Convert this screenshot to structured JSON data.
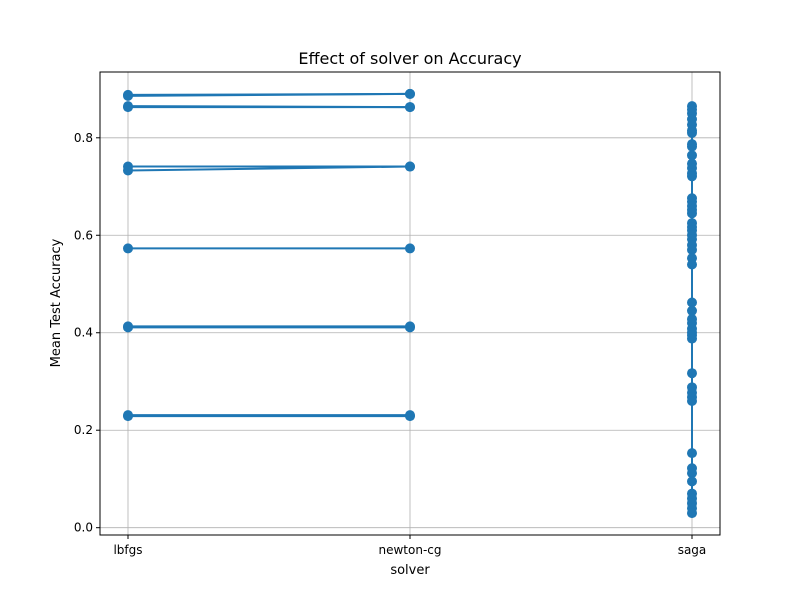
{
  "chart_data": {
    "type": "line",
    "title": "Effect of solver on Accuracy",
    "xlabel": "solver",
    "ylabel": "Mean Test Accuracy",
    "categories": [
      "lbfgs",
      "newton-cg",
      "saga"
    ],
    "ylim": [
      -0.015,
      0.935
    ],
    "yticks": [
      0.0,
      0.2,
      0.4,
      0.6,
      0.8
    ],
    "ytick_labels": [
      "0.0",
      "0.2",
      "0.4",
      "0.6",
      "0.8"
    ],
    "grid": true,
    "line_color": "#1f77b4",
    "lbfgs_newton_pairs": [
      [
        0.886,
        0.89
      ],
      [
        0.888,
        0.89
      ],
      [
        0.865,
        0.863
      ],
      [
        0.863,
        0.863
      ],
      [
        0.741,
        0.741
      ],
      [
        0.733,
        0.741
      ],
      [
        0.573,
        0.573
      ],
      [
        0.411,
        0.411
      ],
      [
        0.413,
        0.413
      ],
      [
        0.231,
        0.231
      ],
      [
        0.229,
        0.229
      ]
    ],
    "saga_values": [
      0.865,
      0.858,
      0.85,
      0.838,
      0.827,
      0.815,
      0.81,
      0.787,
      0.782,
      0.764,
      0.747,
      0.738,
      0.727,
      0.721,
      0.676,
      0.669,
      0.66,
      0.652,
      0.645,
      0.625,
      0.617,
      0.61,
      0.6,
      0.592,
      0.58,
      0.57,
      0.553,
      0.54,
      0.462,
      0.445,
      0.428,
      0.42,
      0.408,
      0.4,
      0.395,
      0.388,
      0.317,
      0.288,
      0.277,
      0.268,
      0.26,
      0.153,
      0.122,
      0.112,
      0.095,
      0.07,
      0.06,
      0.05,
      0.04,
      0.03
    ]
  }
}
